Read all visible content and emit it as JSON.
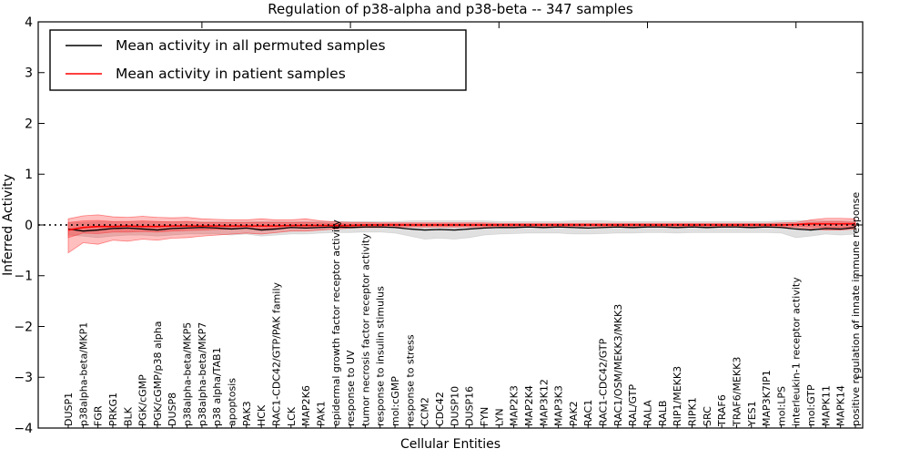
{
  "chart_data": {
    "type": "line",
    "title": "Regulation of p38-alpha and p38-beta -- 347 samples",
    "xlabel": "Cellular Entities",
    "ylabel": "Inferred Activity",
    "ylim": [
      -4,
      4
    ],
    "yticks": [
      -4,
      -3,
      -2,
      -1,
      0,
      1,
      2,
      3,
      4
    ],
    "ytick_labels": [
      "−4",
      "−3",
      "−2",
      "−1",
      "0",
      "1",
      "2",
      "3",
      "4"
    ],
    "grid": false,
    "legend": {
      "position": "upper-left",
      "entries": [
        {
          "label": "Mean activity in all permuted samples",
          "color": "#000000"
        },
        {
          "label": "Mean activity in patient samples",
          "color": "#ff0000"
        }
      ]
    },
    "zero_line": {
      "y": 0,
      "style": "dotted",
      "color": "#000000"
    },
    "categories": [
      "DUSP1",
      "p38alpha-beta/MKP1",
      "FGR",
      "PRKG1",
      "BLK",
      "PGK/cGMP",
      "PGK/cGMP/p38 alpha",
      "DUSP8",
      "p38alpha-beta/MKP5",
      "p38alpha-beta/MKP7",
      "p38 alpha/TAB1",
      "apoptosis",
      "PAK3",
      "HCK",
      "RAC1-CDC42/GTP/PAK family",
      "LCK",
      "MAP2K6",
      "PAK1",
      "epidermal growth factor receptor activity",
      "response to UV",
      "tumor necrosis factor receptor activity",
      "response to insulin stimulus",
      "mol:cGMP",
      "response to stress",
      "CCM2",
      "CDC42",
      "DUSP10",
      "DUSP16",
      "FYN",
      "LYN",
      "MAP2K3",
      "MAP2K4",
      "MAP3K12",
      "MAP3K3",
      "PAK2",
      "RAC1",
      "RAC1-CDC42/GTP",
      "RAC1/OSM/MEKK3/MKK3",
      "RAL/GTP",
      "RALA",
      "RALB",
      "RIP1/MEKK3",
      "RIPK1",
      "SRC",
      "TRAF6",
      "TRAF6/MEKK3",
      "YES1",
      "MAP3K7IP1",
      "mol:LPS",
      "interleukin-1 receptor activity",
      "mol:GTP",
      "MAPK11",
      "MAPK14",
      "positive regulation of innate immune response"
    ],
    "series": [
      {
        "name": "Mean activity in all permuted samples",
        "color": "#000000",
        "width": 1.3,
        "values": [
          -0.08,
          -0.12,
          -0.1,
          -0.07,
          -0.06,
          -0.08,
          -0.1,
          -0.07,
          -0.06,
          -0.05,
          -0.06,
          -0.08,
          -0.06,
          -0.1,
          -0.08,
          -0.05,
          -0.06,
          -0.05,
          -0.04,
          -0.05,
          -0.04,
          -0.04,
          -0.05,
          -0.08,
          -0.1,
          -0.09,
          -0.1,
          -0.08,
          -0.06,
          -0.05,
          -0.05,
          -0.04,
          -0.05,
          -0.04,
          -0.05,
          -0.06,
          -0.05,
          -0.04,
          -0.05,
          -0.04,
          -0.04,
          -0.05,
          -0.04,
          -0.05,
          -0.04,
          -0.04,
          -0.05,
          -0.04,
          -0.05,
          -0.08,
          -0.1,
          -0.07,
          -0.08,
          -0.05
        ]
      },
      {
        "name": "Mean activity in patient samples",
        "color": "#ff0000",
        "width": 1.6,
        "values": [
          -0.1,
          -0.05,
          -0.03,
          -0.03,
          -0.02,
          -0.03,
          -0.03,
          -0.02,
          -0.02,
          -0.02,
          -0.02,
          -0.02,
          -0.02,
          -0.02,
          -0.02,
          -0.01,
          -0.01,
          -0.01,
          -0.01,
          -0.01,
          0.0,
          0.0,
          0.0,
          0.0,
          0.0,
          0.0,
          0.0,
          0.0,
          0.0,
          0.0,
          0.0,
          0.0,
          0.0,
          0.0,
          0.0,
          0.0,
          0.0,
          0.0,
          0.0,
          0.0,
          0.0,
          0.0,
          0.0,
          0.0,
          0.0,
          0.0,
          0.0,
          0.0,
          0.0,
          0.01,
          0.02,
          0.02,
          0.02,
          0.02
        ]
      }
    ],
    "bands": [
      {
        "name": "permuted-samples-range",
        "color": "#000000",
        "opacity": 0.12,
        "edge_opacity": 0.1,
        "upper": [
          0.04,
          0.05,
          0.06,
          0.06,
          0.06,
          0.06,
          0.06,
          0.06,
          0.06,
          0.06,
          0.06,
          0.06,
          0.06,
          0.07,
          0.07,
          0.06,
          0.07,
          0.07,
          0.07,
          0.07,
          0.07,
          0.07,
          0.07,
          0.08,
          0.08,
          0.08,
          0.08,
          0.08,
          0.08,
          0.07,
          0.07,
          0.07,
          0.07,
          0.07,
          0.08,
          0.08,
          0.08,
          0.07,
          0.07,
          0.07,
          0.07,
          0.07,
          0.07,
          0.07,
          0.07,
          0.07,
          0.07,
          0.07,
          0.08,
          0.09,
          0.08,
          0.08,
          0.08,
          0.07
        ],
        "lower": [
          -0.2,
          -0.22,
          -0.25,
          -0.22,
          -0.2,
          -0.2,
          -0.22,
          -0.2,
          -0.18,
          -0.18,
          -0.18,
          -0.2,
          -0.18,
          -0.22,
          -0.2,
          -0.18,
          -0.18,
          -0.16,
          -0.15,
          -0.15,
          -0.14,
          -0.14,
          -0.16,
          -0.22,
          -0.28,
          -0.26,
          -0.28,
          -0.25,
          -0.2,
          -0.18,
          -0.17,
          -0.16,
          -0.16,
          -0.16,
          -0.18,
          -0.18,
          -0.17,
          -0.16,
          -0.16,
          -0.15,
          -0.15,
          -0.16,
          -0.15,
          -0.15,
          -0.15,
          -0.15,
          -0.15,
          -0.15,
          -0.16,
          -0.25,
          -0.22,
          -0.18,
          -0.2,
          -0.18
        ]
      },
      {
        "name": "patient-samples-outer-range",
        "color": "#ff0000",
        "opacity": 0.25,
        "edge_opacity": 0.45,
        "upper": [
          0.12,
          0.18,
          0.2,
          0.16,
          0.15,
          0.17,
          0.15,
          0.14,
          0.15,
          0.12,
          0.11,
          0.1,
          0.1,
          0.12,
          0.1,
          0.1,
          0.12,
          0.08,
          0.06,
          0.05,
          0.05,
          0.04,
          0.04,
          0.04,
          0.04,
          0.04,
          0.04,
          0.04,
          0.04,
          0.03,
          0.03,
          0.03,
          0.03,
          0.03,
          0.03,
          0.03,
          0.03,
          0.03,
          0.03,
          0.03,
          0.03,
          0.03,
          0.03,
          0.03,
          0.03,
          0.03,
          0.03,
          0.03,
          0.04,
          0.05,
          0.1,
          0.13,
          0.13,
          0.12
        ],
        "lower": [
          -0.55,
          -0.35,
          -0.38,
          -0.3,
          -0.32,
          -0.28,
          -0.3,
          -0.26,
          -0.25,
          -0.22,
          -0.2,
          -0.18,
          -0.16,
          -0.18,
          -0.15,
          -0.12,
          -0.12,
          -0.1,
          -0.08,
          -0.06,
          -0.05,
          -0.05,
          -0.04,
          -0.04,
          -0.04,
          -0.04,
          -0.04,
          -0.04,
          -0.04,
          -0.03,
          -0.03,
          -0.03,
          -0.03,
          -0.03,
          -0.03,
          -0.03,
          -0.03,
          -0.03,
          -0.03,
          -0.03,
          -0.03,
          -0.03,
          -0.03,
          -0.03,
          -0.03,
          -0.03,
          -0.03,
          -0.03,
          -0.04,
          -0.05,
          -0.08,
          -0.1,
          -0.1,
          -0.08
        ]
      },
      {
        "name": "patient-samples-inner-range",
        "color": "#ff0000",
        "opacity": 0.25,
        "edge_opacity": 0.35,
        "upper": [
          0.05,
          0.08,
          0.09,
          0.07,
          0.07,
          0.08,
          0.07,
          0.06,
          0.07,
          0.05,
          0.05,
          0.05,
          0.05,
          0.05,
          0.05,
          0.05,
          0.05,
          0.04,
          0.03,
          0.02,
          0.02,
          0.02,
          0.02,
          0.02,
          0.02,
          0.02,
          0.02,
          0.02,
          0.02,
          0.01,
          0.01,
          0.01,
          0.01,
          0.01,
          0.01,
          0.01,
          0.01,
          0.01,
          0.01,
          0.01,
          0.01,
          0.01,
          0.01,
          0.01,
          0.01,
          0.01,
          0.01,
          0.01,
          0.02,
          0.02,
          0.05,
          0.06,
          0.06,
          0.05
        ],
        "lower": [
          -0.25,
          -0.16,
          -0.17,
          -0.14,
          -0.14,
          -0.13,
          -0.14,
          -0.12,
          -0.11,
          -0.1,
          -0.09,
          -0.08,
          -0.07,
          -0.08,
          -0.07,
          -0.05,
          -0.05,
          -0.05,
          -0.04,
          -0.03,
          -0.02,
          -0.02,
          -0.02,
          -0.02,
          -0.02,
          -0.02,
          -0.02,
          -0.02,
          -0.02,
          -0.01,
          -0.01,
          -0.01,
          -0.01,
          -0.01,
          -0.01,
          -0.01,
          -0.01,
          -0.01,
          -0.01,
          -0.01,
          -0.01,
          -0.01,
          -0.01,
          -0.01,
          -0.01,
          -0.01,
          -0.01,
          -0.01,
          -0.02,
          -0.02,
          -0.04,
          -0.05,
          -0.05,
          -0.04
        ]
      }
    ]
  },
  "colors": {
    "background": "#ffffff",
    "axis": "#000000"
  }
}
